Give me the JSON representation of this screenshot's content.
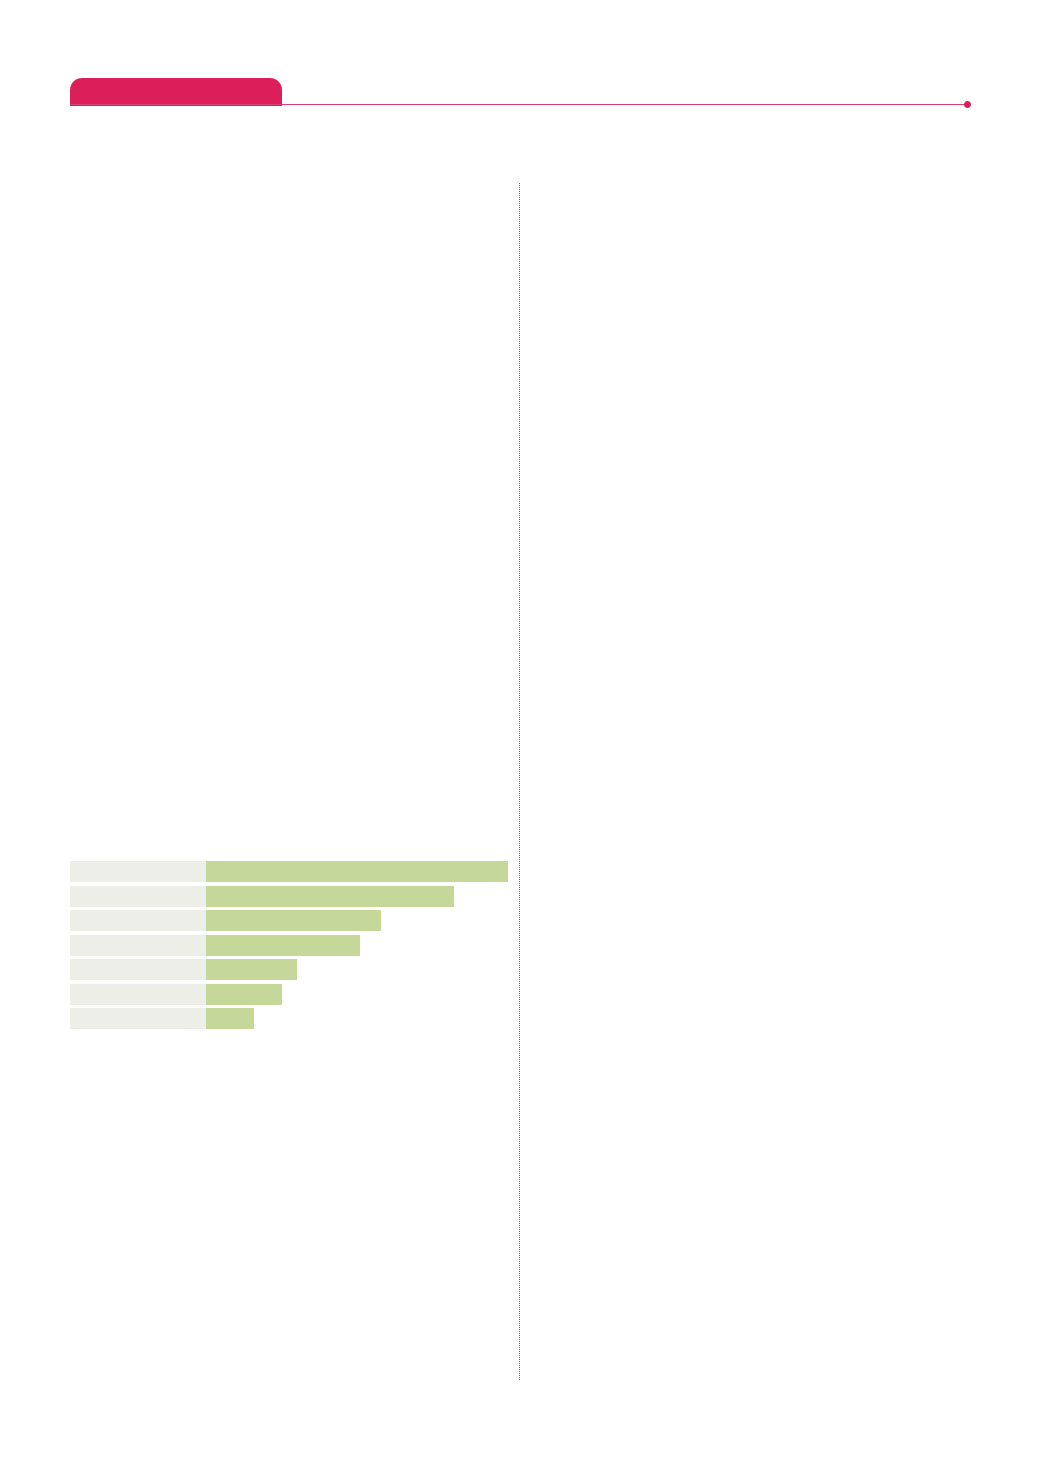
{
  "colors": {
    "accent": "#dc1e5a",
    "rule": "#d9406e",
    "label_cell": "#eeeee8",
    "bar": "#c5d89a"
  },
  "chart_data": {
    "type": "bar",
    "orientation": "horizontal",
    "categories": [
      "",
      "",
      "",
      "",
      "",
      "",
      ""
    ],
    "values": [
      100,
      82,
      58,
      51,
      30,
      25,
      16
    ],
    "title": "",
    "xlabel": "",
    "ylabel": "",
    "xlim": [
      0,
      100
    ],
    "grid": false
  }
}
